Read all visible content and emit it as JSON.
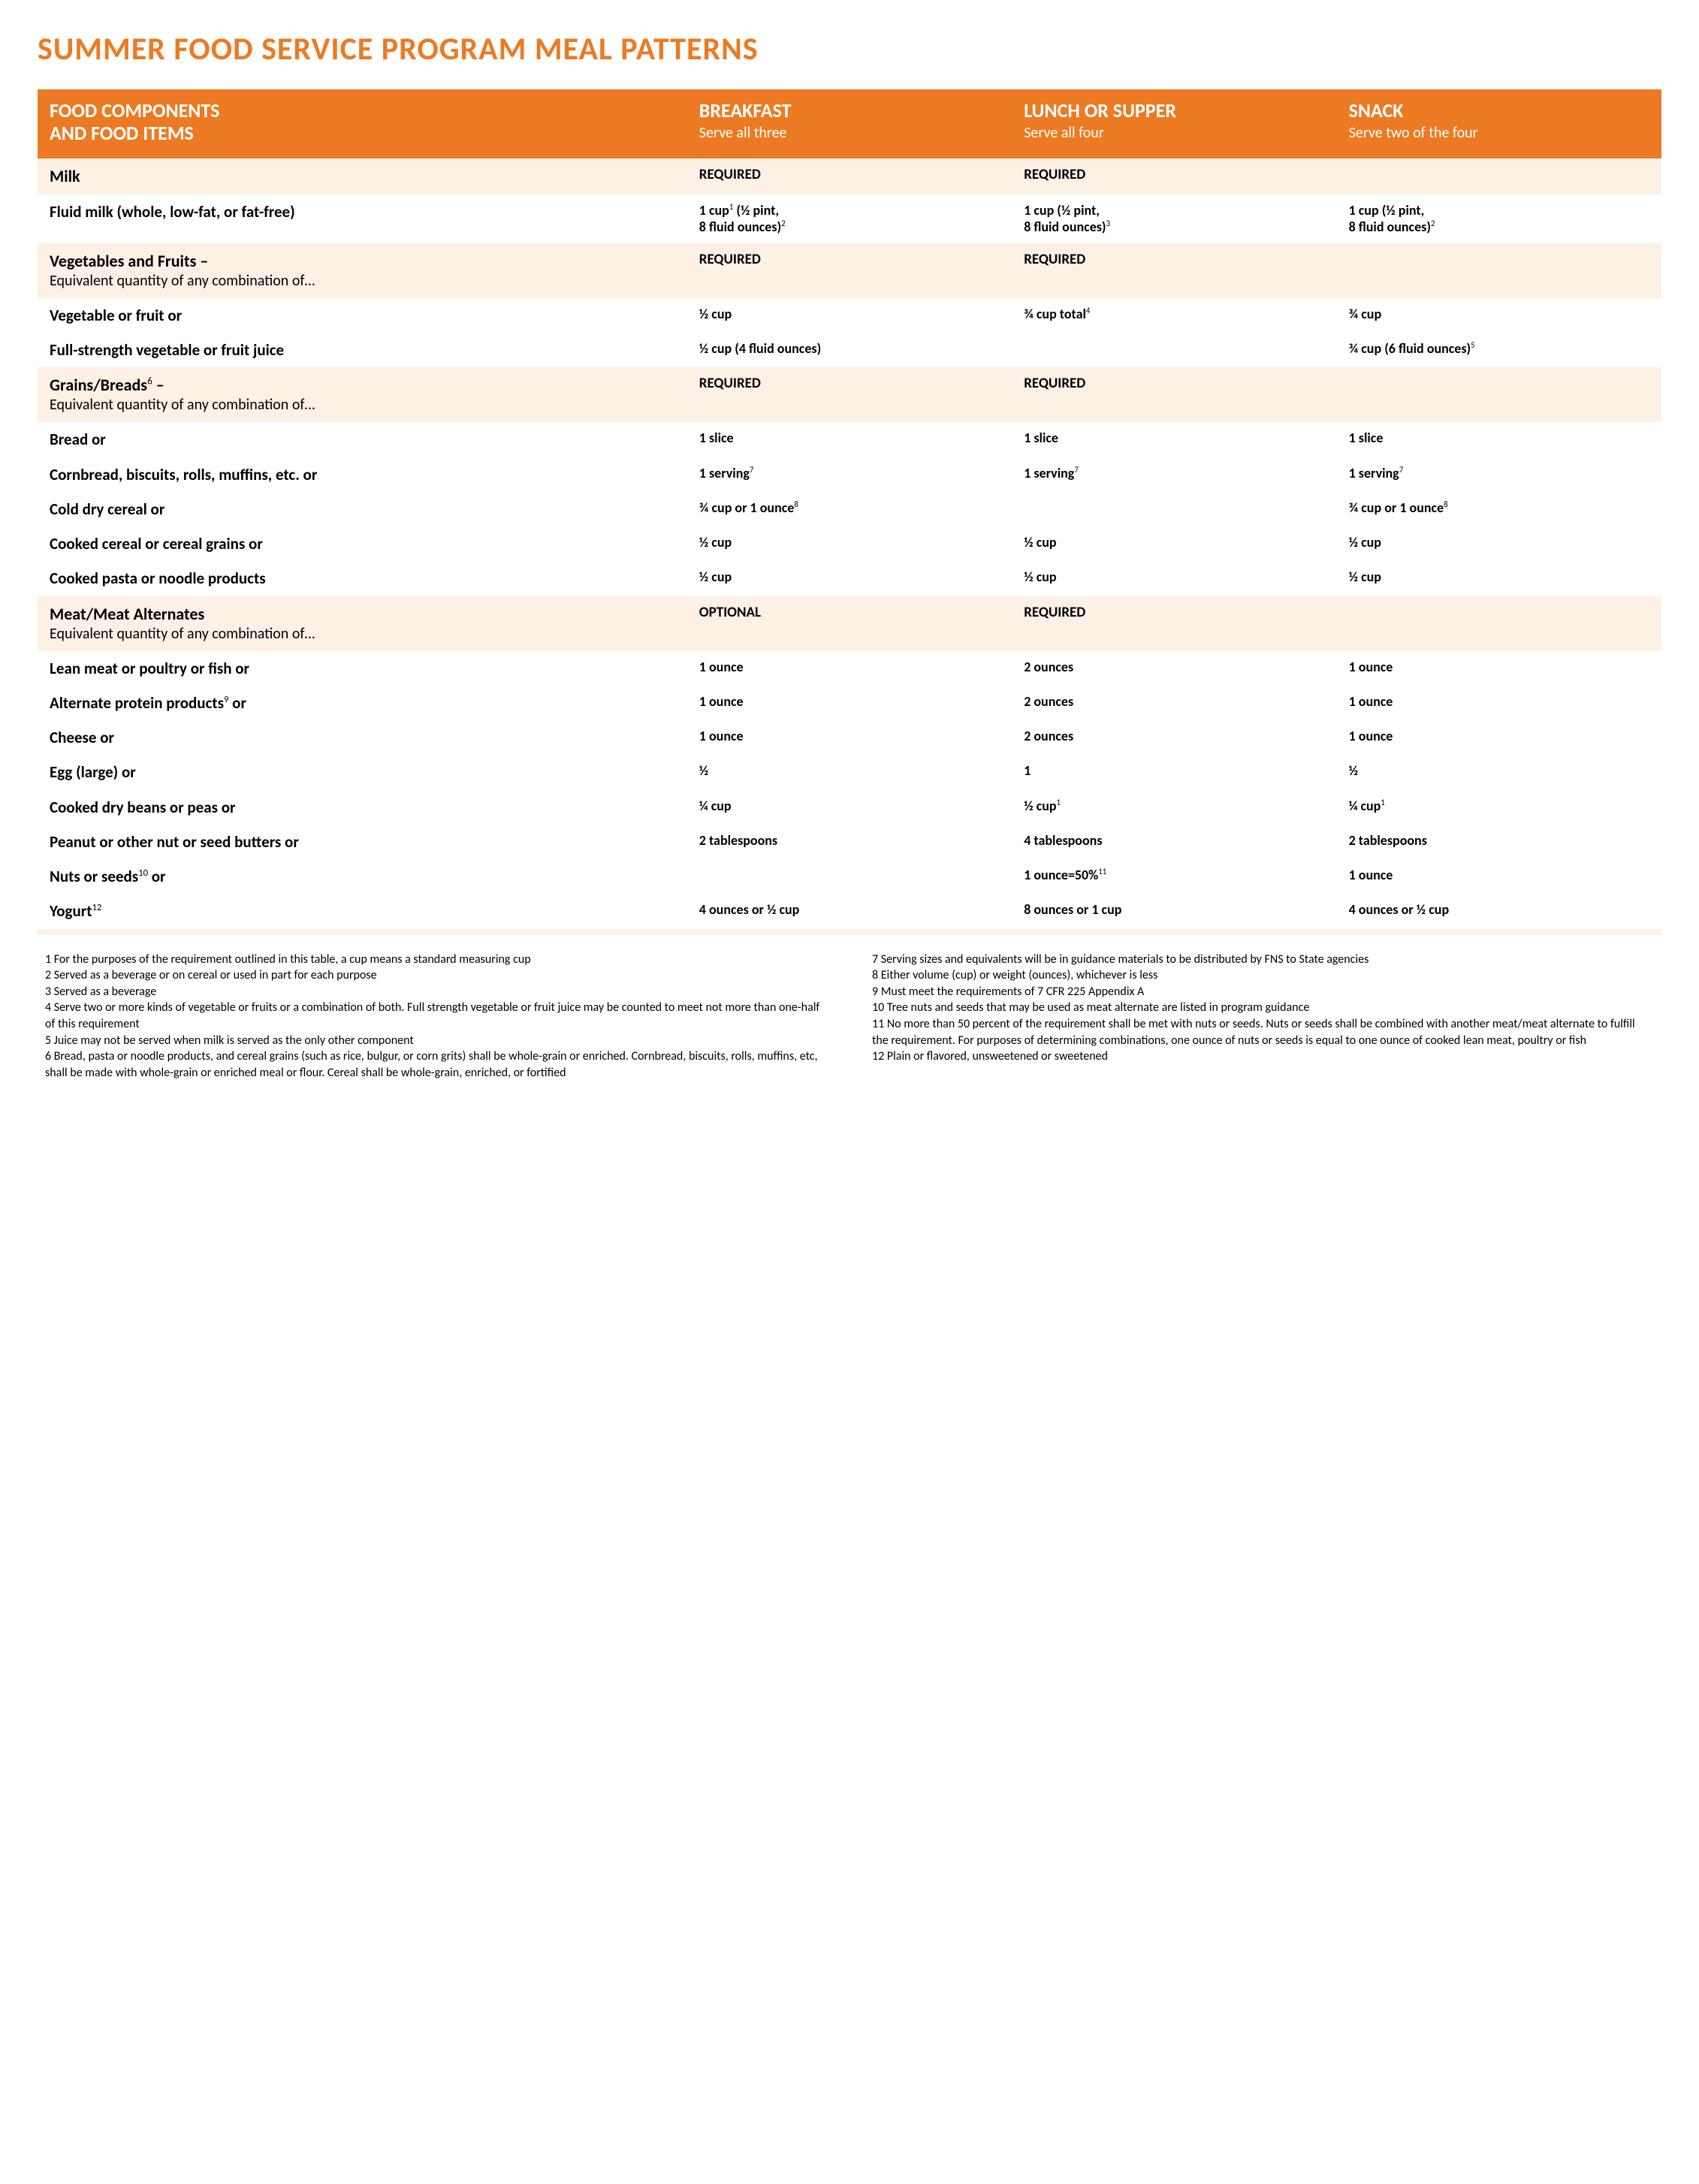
{
  "colors": {
    "accent": "#ec7a23",
    "section_bg": "#fdf1e6",
    "text": "#000000",
    "header_text": "#ffffff",
    "background": "#ffffff"
  },
  "layout": {
    "col_widths_pct": [
      40,
      20,
      20,
      20
    ],
    "title_fontsize": 42,
    "header_main_fontsize": 26,
    "header_sub_fontsize": 20,
    "section_title_fontsize": 22,
    "item_label_fontsize": 21,
    "meal_cell_fontsize": 18,
    "footnote_fontsize": 16
  },
  "title": "SUMMER FOOD SERVICE PROGRAM MEAL PATTERNS",
  "header": {
    "col0": {
      "main": "FOOD COMPONENTS\nAND FOOD ITEMS",
      "sub": ""
    },
    "col1": {
      "main": "BREAKFAST",
      "sub": "Serve all three"
    },
    "col2": {
      "main": "LUNCH OR SUPPER",
      "sub": "Serve all four"
    },
    "col3": {
      "main": "SNACK",
      "sub": "Serve two of the four"
    }
  },
  "rows": [
    {
      "type": "section",
      "label_main": "Milk",
      "label_sub": "",
      "breakfast": "REQUIRED",
      "lunch": "REQUIRED",
      "snack": ""
    },
    {
      "type": "item",
      "label_html": "Fluid milk (whole, low-fat, or fat-free)",
      "breakfast_html": "1 cup<sup>1</sup> (½ pint,<br>8 fluid ounces)<sup>2</sup>",
      "lunch_html": "1 cup (½ pint,<br>8 fluid ounces)<sup>3</sup>",
      "snack_html": "1 cup (½ pint,<br>8 fluid ounces)<sup>2</sup>"
    },
    {
      "type": "section",
      "label_main": "Vegetables and Fruits –",
      "label_sub": "Equivalent quantity of any combination of…",
      "breakfast": "REQUIRED",
      "lunch": "REQUIRED",
      "snack": ""
    },
    {
      "type": "item",
      "label_html": "Vegetable or fruit or",
      "breakfast_html": "½  cup",
      "lunch_html": "¾ cup total<sup>4</sup>",
      "snack_html": "¾ cup"
    },
    {
      "type": "item",
      "label_html": "Full-strength vegetable or fruit juice",
      "breakfast_html": "½  cup (4 fluid ounces)",
      "lunch_html": "",
      "snack_html": "¾ cup (6 fluid ounces)<sup>5</sup>"
    },
    {
      "type": "section",
      "label_main_html": "Grains/Breads<sup>6</sup> –",
      "label_sub": "Equivalent quantity of any combination of…",
      "breakfast": "REQUIRED",
      "lunch": "REQUIRED",
      "snack": ""
    },
    {
      "type": "item",
      "label_html": "Bread or",
      "breakfast_html": "1 slice",
      "lunch_html": "1 slice",
      "snack_html": "1 slice"
    },
    {
      "type": "item",
      "label_html": "Cornbread, biscuits, rolls, muffins, etc. or",
      "breakfast_html": "1 serving<sup>7</sup>",
      "lunch_html": "1 serving<sup>7</sup>",
      "snack_html": "1 serving<sup>7</sup>"
    },
    {
      "type": "item",
      "label_html": "Cold dry cereal or",
      "breakfast_html": "¾ cup or 1 ounce<sup>8</sup>",
      "lunch_html": "",
      "snack_html": "¾ cup or 1 ounce<sup>8</sup>"
    },
    {
      "type": "item",
      "label_html": "Cooked cereal or cereal grains or",
      "breakfast_html": "½  cup",
      "lunch_html": "½  cup",
      "snack_html": "½  cup"
    },
    {
      "type": "item",
      "label_html": "Cooked pasta or noodle products",
      "breakfast_html": "½  cup",
      "lunch_html": "½  cup",
      "snack_html": "½  cup"
    },
    {
      "type": "section",
      "label_main": "Meat/Meat Alternates",
      "label_sub": "Equivalent quantity of any combination of…",
      "breakfast": "OPTIONAL",
      "lunch": "REQUIRED",
      "snack": ""
    },
    {
      "type": "item",
      "label_html": "Lean meat or poultry or fish or",
      "breakfast_html": "1 ounce",
      "lunch_html": "2  ounces",
      "snack_html": "1  ounce"
    },
    {
      "type": "item",
      "label_html": "Alternate protein products<sup>9</sup> or",
      "breakfast_html": "1 ounce",
      "lunch_html": "2  ounces",
      "snack_html": "1  ounce"
    },
    {
      "type": "item",
      "label_html": "Cheese or",
      "breakfast_html": "1 ounce",
      "lunch_html": "2  ounces",
      "snack_html": "1  ounce"
    },
    {
      "type": "item",
      "label_html": "Egg (large) or",
      "breakfast_html": "½",
      "lunch_html": "1",
      "snack_html": "½"
    },
    {
      "type": "item",
      "label_html": "Cooked dry beans or peas or",
      "breakfast_html": "¼ cup",
      "lunch_html": "½  cup<sup>1</sup>",
      "snack_html": "¼ cup<sup>1</sup>"
    },
    {
      "type": "item",
      "label_html": "Peanut or other nut or seed butters or",
      "breakfast_html": "2 tablespoons",
      "lunch_html": "4 tablespoons",
      "snack_html": "2 tablespoons"
    },
    {
      "type": "item",
      "label_html": "Nuts or seeds<sup>10</sup> or",
      "breakfast_html": "",
      "lunch_html": "1 ounce=50%<sup>11</sup>",
      "snack_html": "1 ounce"
    },
    {
      "type": "item",
      "label_html": "Yogurt<sup>12</sup>",
      "breakfast_html": "4 ounces or ½ cup",
      "lunch_html": "8 ounces or 1 cup",
      "snack_html": "4 ounces or ½ cup"
    },
    {
      "type": "thinline"
    }
  ],
  "footnotes": {
    "left": [
      "1 For the purposes of the requirement outlined in this table, a cup means a standard measuring cup",
      "2 Served as a beverage or on cereal or used in part for each purpose",
      "3 Served as a beverage",
      "4 Serve two or more kinds of vegetable or fruits or a combination of both. Full strength vegetable or fruit juice may be counted to meet not more than one-half of this requirement",
      "5 Juice may not be served when milk is served as the only other component",
      "6 Bread, pasta or noodle products, and cereal grains (such as rice, bulgur, or corn grits) shall be whole-grain or enriched. Cornbread, biscuits, rolls, muffins, etc, shall be made with whole-grain or enriched meal or flour. Cereal shall be whole-grain, enriched, or fortified"
    ],
    "right": [
      "7 Serving sizes and equivalents will be in guidance materials to be distributed by FNS to State agencies",
      "8 Either volume (cup) or weight (ounces), whichever is less",
      "9 Must meet the requirements of 7 CFR 225 Appendix A",
      "10 Tree nuts and seeds that may be used as meat alternate are listed in program guidance",
      "11 No more than 50 percent of the requirement shall be met with nuts or seeds. Nuts or seeds shall be combined with another meat/meat alternate to fulfill the requirement. For purposes of determining combinations, one ounce of nuts or seeds is equal to one ounce of cooked lean meat, poultry or fish",
      "12 Plain or flavored, unsweetened or sweetened"
    ]
  }
}
